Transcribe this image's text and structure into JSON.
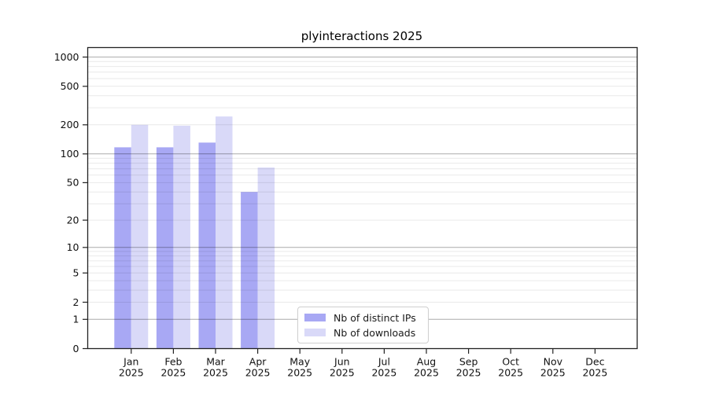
{
  "chart_data": {
    "type": "bar",
    "title": "plyinteractions 2025",
    "x_tick_months": [
      "Jan",
      "Feb",
      "Mar",
      "Apr",
      "May",
      "Jun",
      "Jul",
      "Aug",
      "Sep",
      "Oct",
      "Nov",
      "Dec"
    ],
    "x_tick_year": "2025",
    "y_ticks": [
      0,
      1,
      2,
      5,
      10,
      20,
      50,
      100,
      200,
      500,
      1000
    ],
    "y_minor_gridlines": [
      2,
      3,
      4,
      5,
      6,
      7,
      8,
      9,
      20,
      30,
      40,
      50,
      60,
      70,
      80,
      90,
      200,
      300,
      400,
      500,
      600,
      700,
      800,
      900
    ],
    "y_major_gridlines": [
      1,
      10,
      100,
      1000
    ],
    "y_scale": "log10(1+value), 0 at baseline",
    "ylim": [
      0,
      1285
    ],
    "grid": "horizontal, major darker + minor faint, drawn over bars",
    "legend_position": "inside bottom-center of axes",
    "series": [
      {
        "name": "Nb of distinct IPs",
        "color": "#a8a8f4",
        "values": [
          117,
          117,
          131,
          40,
          null,
          null,
          null,
          null,
          null,
          null,
          null,
          null
        ]
      },
      {
        "name": "Nb of downloads",
        "color": "#d9d9f8",
        "values": [
          200,
          196,
          244,
          72,
          null,
          null,
          null,
          null,
          null,
          null,
          null,
          null
        ]
      }
    ],
    "colors": {
      "major_grid": "rgba(0,0,0,0.33)",
      "minor_grid": "rgba(0,0,0,0.085)",
      "spine": "#222222",
      "tick": "#222222",
      "text": "#111111"
    }
  }
}
